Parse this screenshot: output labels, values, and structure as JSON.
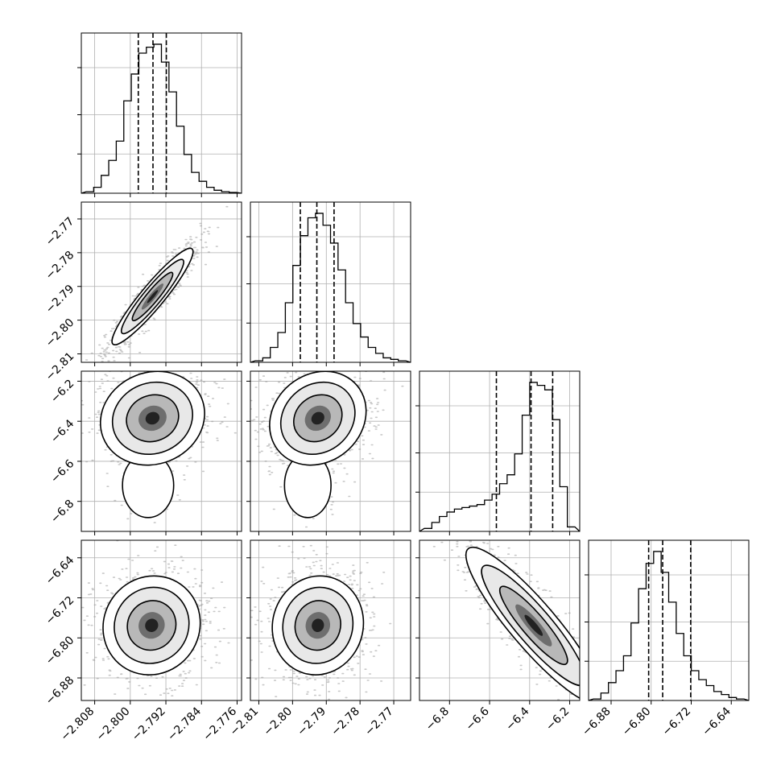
{
  "chart_data": {
    "type": "corner",
    "title": "",
    "parameters": [
      {
        "range": [
          -2.811,
          -2.775
        ],
        "ticks": [
          "−2.808",
          "−2.800",
          "−2.792",
          "−2.784",
          "−2.776"
        ],
        "tick_values": [
          -2.808,
          -2.8,
          -2.792,
          -2.784,
          -2.776
        ],
        "median": -2.7949,
        "q16": -2.7982,
        "q84": -2.7919
      },
      {
        "range": [
          -2.8125,
          -2.765
        ],
        "ticks": [
          "−2.81",
          "−2.80",
          "−2.79",
          "−2.78",
          "−2.77"
        ],
        "tick_values": [
          -2.81,
          -2.8,
          -2.79,
          -2.78,
          -2.77
        ],
        "median": -2.7928,
        "q16": -2.7977,
        "q84": -2.7877
      },
      {
        "range": [
          -6.95,
          -6.15
        ],
        "ticks": [
          "−6.8",
          "−6.6",
          "−6.4",
          "−6.2"
        ],
        "tick_values": [
          -6.8,
          -6.6,
          -6.4,
          -6.2
        ],
        "median": -6.393,
        "q16": -6.566,
        "q84": -6.285
      },
      {
        "range": [
          -6.925,
          -6.605
        ],
        "ticks": [
          "−6.88",
          "−6.80",
          "−6.72",
          "−6.64"
        ],
        "tick_values": [
          -6.88,
          -6.8,
          -6.72,
          -6.64
        ],
        "median": -6.777,
        "q16": -6.805,
        "q84": -6.721
      }
    ],
    "histograms": [
      [
        0.01,
        0.04,
        0.12,
        0.22,
        0.35,
        0.62,
        0.8,
        0.94,
        0.98,
        1.0,
        0.88,
        0.68,
        0.45,
        0.26,
        0.14,
        0.08,
        0.04,
        0.02,
        0.01,
        0.005
      ],
      [
        0.01,
        0.03,
        0.1,
        0.2,
        0.4,
        0.65,
        0.85,
        0.97,
        1.0,
        0.92,
        0.8,
        0.62,
        0.4,
        0.26,
        0.17,
        0.1,
        0.06,
        0.03,
        0.02,
        0.01
      ],
      [
        0.02,
        0.06,
        0.1,
        0.13,
        0.15,
        0.16,
        0.17,
        0.18,
        0.21,
        0.25,
        0.32,
        0.38,
        0.52,
        0.78,
        1.0,
        0.98,
        0.95,
        0.75,
        0.3,
        0.03
      ],
      [
        0.01,
        0.05,
        0.12,
        0.2,
        0.3,
        0.52,
        0.75,
        0.92,
        1.0,
        0.86,
        0.66,
        0.45,
        0.3,
        0.2,
        0.14,
        0.1,
        0.06,
        0.04,
        0.02,
        0.01
      ]
    ],
    "pairs": [
      {
        "row": 1,
        "col": 0,
        "cx": -2.795,
        "cy": -2.793,
        "sx": 0.0035,
        "sy": 0.0055,
        "rho": 0.93
      },
      {
        "row": 2,
        "col": 0,
        "cx": -2.795,
        "cy": -6.385,
        "sx": 0.0045,
        "sy": 0.09,
        "rho": 0.1,
        "tail": {
          "cx": -2.796,
          "cy": -6.72,
          "sx": 0.0025,
          "sy": 0.07
        }
      },
      {
        "row": 2,
        "col": 1,
        "cx": -2.7925,
        "cy": -6.385,
        "sx": 0.0055,
        "sy": 0.09,
        "rho": 0.15,
        "tail": {
          "cx": -2.7955,
          "cy": -6.72,
          "sx": 0.003,
          "sy": 0.07
        }
      },
      {
        "row": 3,
        "col": 0,
        "cx": -2.7952,
        "cy": -6.775,
        "sx": 0.0042,
        "sy": 0.038,
        "rho": 0.05
      },
      {
        "row": 3,
        "col": 1,
        "cx": -2.7925,
        "cy": -6.775,
        "sx": 0.0052,
        "sy": 0.038,
        "rho": 0.05
      },
      {
        "row": 3,
        "col": 2,
        "cx": -6.38,
        "cy": -6.775,
        "sx": 0.13,
        "sy": 0.06,
        "rho": -0.9
      }
    ],
    "grid": true,
    "legend": "none"
  }
}
